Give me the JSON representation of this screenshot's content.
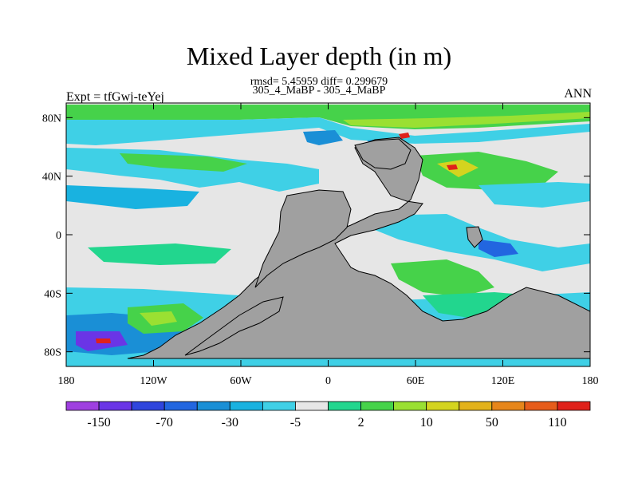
{
  "title": "Mixed Layer depth (in m)",
  "stats_line": "rmsd= 5.45959 diff= 0.299679",
  "case_line": "305_4_MaBP - 305_4_MaBP",
  "experiment_label": "Expt = tfGwj-teYej",
  "season_label": "ANN",
  "map": {
    "lon_range": [
      -180,
      180
    ],
    "lat_range": [
      -90,
      90
    ],
    "lon_ticks": [
      {
        "value": -180,
        "label": "180"
      },
      {
        "value": -120,
        "label": "120W"
      },
      {
        "value": -60,
        "label": "60W"
      },
      {
        "value": 0,
        "label": "0"
      },
      {
        "value": 60,
        "label": "60E"
      },
      {
        "value": 120,
        "label": "120E"
      },
      {
        "value": 180,
        "label": "180"
      }
    ],
    "lat_ticks": [
      {
        "value": 80,
        "label": "80N"
      },
      {
        "value": 40,
        "label": "40N"
      },
      {
        "value": 0,
        "label": "0"
      },
      {
        "value": -40,
        "label": "40S"
      },
      {
        "value": -80,
        "label": "80S"
      }
    ],
    "land_color": "#a0a0a0",
    "neutral_color": "#e6e6e6"
  },
  "colorbar": {
    "colors": [
      "#9f3fe0",
      "#6a35e6",
      "#2f45dd",
      "#2266e0",
      "#1a8fd6",
      "#19b2e0",
      "#3fd0e6",
      "#e6e6e6",
      "#22d68e",
      "#46d24a",
      "#9ae032",
      "#d4d41f",
      "#e3b21b",
      "#e6861b",
      "#e65c1b",
      "#e0211a"
    ],
    "labels": [
      "-150",
      "-70",
      "-30",
      "-5",
      "2",
      "10",
      "50",
      "110"
    ]
  }
}
